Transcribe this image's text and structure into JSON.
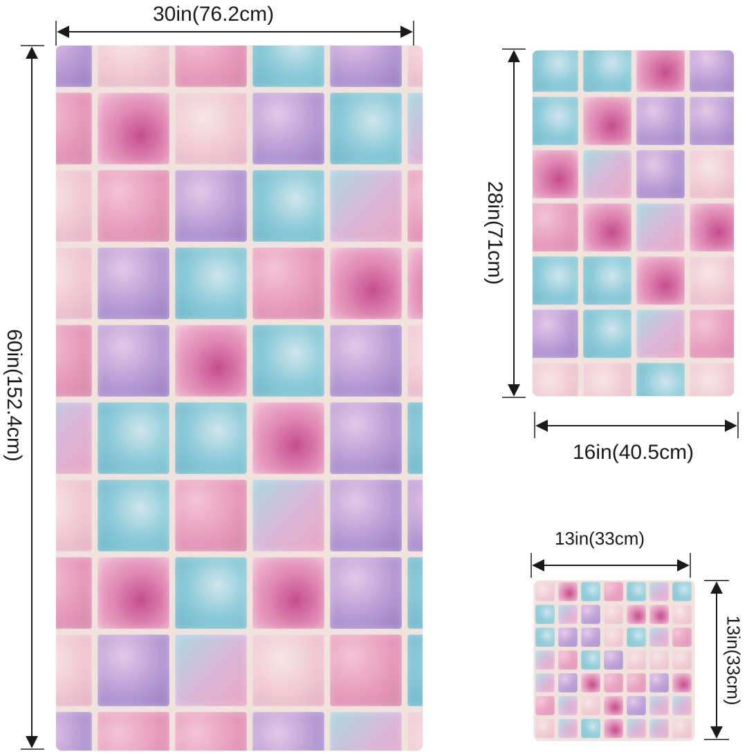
{
  "dimensions": {
    "bath_towel": {
      "width_label": "30in(76.2cm)",
      "height_label": "60in(152.4cm)"
    },
    "hand_towel": {
      "width_label": "16in(40.5cm)",
      "height_label": "28in(71cm)"
    },
    "washcloth": {
      "width_label": "13in(33cm)",
      "height_label": "13in(33cm)"
    }
  },
  "colors": {
    "grout": "#efe3dc",
    "pink": "#e79bbb",
    "teal": "#8ccbd8",
    "purple": "#b79bd4",
    "dimension_line": "#1a1a1a"
  }
}
